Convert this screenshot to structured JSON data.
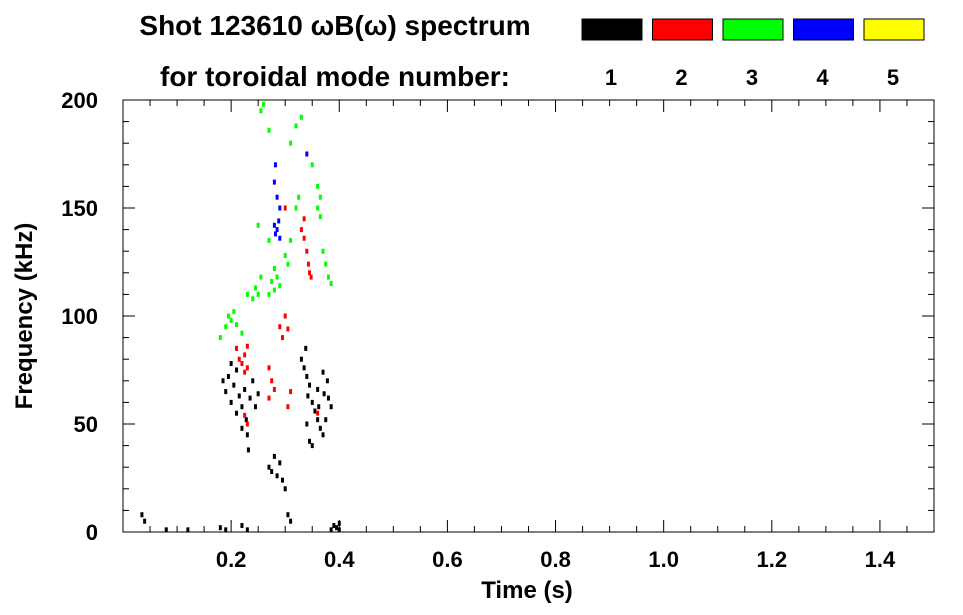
{
  "chart_data": {
    "type": "scatter",
    "title_line1": "Shot 123610 ωB(ω) spectrum",
    "title_line2": "for toroidal mode number:",
    "xlabel": "Time (s)",
    "ylabel": "Frequency (kHz)",
    "xlim": [
      0.0,
      1.5
    ],
    "ylim": [
      0,
      200
    ],
    "x_ticks": [
      0.2,
      0.4,
      0.6,
      0.8,
      1.0,
      1.2,
      1.4
    ],
    "x_tick_labels": [
      "0.2",
      "0.4",
      "0.6",
      "0.8",
      "1.0",
      "1.2",
      "1.4"
    ],
    "y_ticks": [
      0,
      50,
      100,
      150,
      200
    ],
    "y_tick_labels": [
      "0",
      "50",
      "100",
      "150",
      "200"
    ],
    "legend": [
      {
        "label": "1",
        "color": "#000000"
      },
      {
        "label": "2",
        "color": "#ff0000"
      },
      {
        "label": "3",
        "color": "#00ff00"
      },
      {
        "label": "4",
        "color": "#0000ff"
      },
      {
        "label": "5",
        "color": "#ffff00"
      }
    ],
    "legend_placement": "top-right",
    "grid": false,
    "series": [
      {
        "name": "1",
        "color": "#000000",
        "points": [
          [
            0.185,
            70
          ],
          [
            0.19,
            65
          ],
          [
            0.195,
            72
          ],
          [
            0.2,
            60
          ],
          [
            0.205,
            68
          ],
          [
            0.21,
            75
          ],
          [
            0.215,
            63
          ],
          [
            0.22,
            58
          ],
          [
            0.225,
            66
          ],
          [
            0.228,
            52
          ],
          [
            0.23,
            45
          ],
          [
            0.232,
            38
          ],
          [
            0.24,
            70
          ],
          [
            0.235,
            62
          ],
          [
            0.22,
            48
          ],
          [
            0.21,
            55
          ],
          [
            0.2,
            78
          ],
          [
            0.245,
            58
          ],
          [
            0.25,
            64
          ],
          [
            0.33,
            80
          ],
          [
            0.335,
            76
          ],
          [
            0.34,
            72
          ],
          [
            0.345,
            68
          ],
          [
            0.338,
            85
          ],
          [
            0.342,
            63
          ],
          [
            0.35,
            60
          ],
          [
            0.355,
            56
          ],
          [
            0.36,
            52
          ],
          [
            0.36,
            66
          ],
          [
            0.362,
            58
          ],
          [
            0.37,
            74
          ],
          [
            0.372,
            64
          ],
          [
            0.375,
            52
          ],
          [
            0.378,
            70
          ],
          [
            0.38,
            62
          ],
          [
            0.385,
            58
          ],
          [
            0.365,
            48
          ],
          [
            0.37,
            45
          ],
          [
            0.345,
            42
          ],
          [
            0.35,
            40
          ],
          [
            0.34,
            50
          ],
          [
            0.27,
            30
          ],
          [
            0.275,
            28
          ],
          [
            0.28,
            35
          ],
          [
            0.285,
            26
          ],
          [
            0.29,
            32
          ],
          [
            0.295,
            24
          ],
          [
            0.3,
            20
          ],
          [
            0.305,
            8
          ],
          [
            0.31,
            5
          ],
          [
            0.39,
            3
          ],
          [
            0.395,
            2
          ],
          [
            0.4,
            1
          ],
          [
            0.385,
            1
          ],
          [
            0.4,
            4
          ],
          [
            0.035,
            8
          ],
          [
            0.04,
            5
          ],
          [
            0.18,
            2
          ],
          [
            0.19,
            1
          ],
          [
            0.22,
            3
          ],
          [
            0.23,
            1
          ],
          [
            0.08,
            1
          ],
          [
            0.12,
            1
          ]
        ]
      },
      {
        "name": "2",
        "color": "#ff0000",
        "points": [
          [
            0.21,
            85
          ],
          [
            0.215,
            80
          ],
          [
            0.22,
            78
          ],
          [
            0.225,
            82
          ],
          [
            0.23,
            76
          ],
          [
            0.23,
            86
          ],
          [
            0.225,
            74
          ],
          [
            0.27,
            76
          ],
          [
            0.275,
            70
          ],
          [
            0.28,
            66
          ],
          [
            0.27,
            62
          ],
          [
            0.29,
            95
          ],
          [
            0.295,
            90
          ],
          [
            0.3,
            100
          ],
          [
            0.305,
            94
          ],
          [
            0.33,
            140
          ],
          [
            0.335,
            136
          ],
          [
            0.34,
            130
          ],
          [
            0.343,
            124
          ],
          [
            0.345,
            120
          ],
          [
            0.348,
            118
          ],
          [
            0.335,
            145
          ],
          [
            0.3,
            150
          ],
          [
            0.31,
            65
          ],
          [
            0.305,
            58
          ],
          [
            0.36,
            55
          ],
          [
            0.23,
            50
          ],
          [
            0.225,
            54
          ]
        ]
      },
      {
        "name": "3",
        "color": "#00ff00",
        "points": [
          [
            0.19,
            95
          ],
          [
            0.195,
            100
          ],
          [
            0.2,
            98
          ],
          [
            0.205,
            102
          ],
          [
            0.21,
            96
          ],
          [
            0.22,
            92
          ],
          [
            0.18,
            90
          ],
          [
            0.23,
            110
          ],
          [
            0.24,
            108
          ],
          [
            0.245,
            113
          ],
          [
            0.25,
            110
          ],
          [
            0.255,
            118
          ],
          [
            0.27,
            110
          ],
          [
            0.275,
            116
          ],
          [
            0.28,
            112
          ],
          [
            0.285,
            118
          ],
          [
            0.29,
            114
          ],
          [
            0.28,
            122
          ],
          [
            0.3,
            128
          ],
          [
            0.305,
            124
          ],
          [
            0.31,
            135
          ],
          [
            0.32,
            150
          ],
          [
            0.325,
            155
          ],
          [
            0.36,
            150
          ],
          [
            0.365,
            146
          ],
          [
            0.37,
            130
          ],
          [
            0.375,
            124
          ],
          [
            0.38,
            118
          ],
          [
            0.385,
            115
          ],
          [
            0.255,
            195
          ],
          [
            0.26,
            198
          ],
          [
            0.27,
            186
          ],
          [
            0.31,
            180
          ],
          [
            0.32,
            188
          ],
          [
            0.33,
            192
          ],
          [
            0.35,
            170
          ],
          [
            0.36,
            160
          ],
          [
            0.365,
            155
          ],
          [
            0.27,
            135
          ],
          [
            0.25,
            142
          ]
        ]
      },
      {
        "name": "4",
        "color": "#0000ff",
        "points": [
          [
            0.28,
            142
          ],
          [
            0.282,
            138
          ],
          [
            0.285,
            140
          ],
          [
            0.288,
            144
          ],
          [
            0.29,
            136
          ],
          [
            0.29,
            150
          ],
          [
            0.285,
            155
          ],
          [
            0.28,
            162
          ],
          [
            0.282,
            170
          ],
          [
            0.34,
            175
          ]
        ]
      },
      {
        "name": "5",
        "color": "#ffff00",
        "points": []
      }
    ]
  }
}
